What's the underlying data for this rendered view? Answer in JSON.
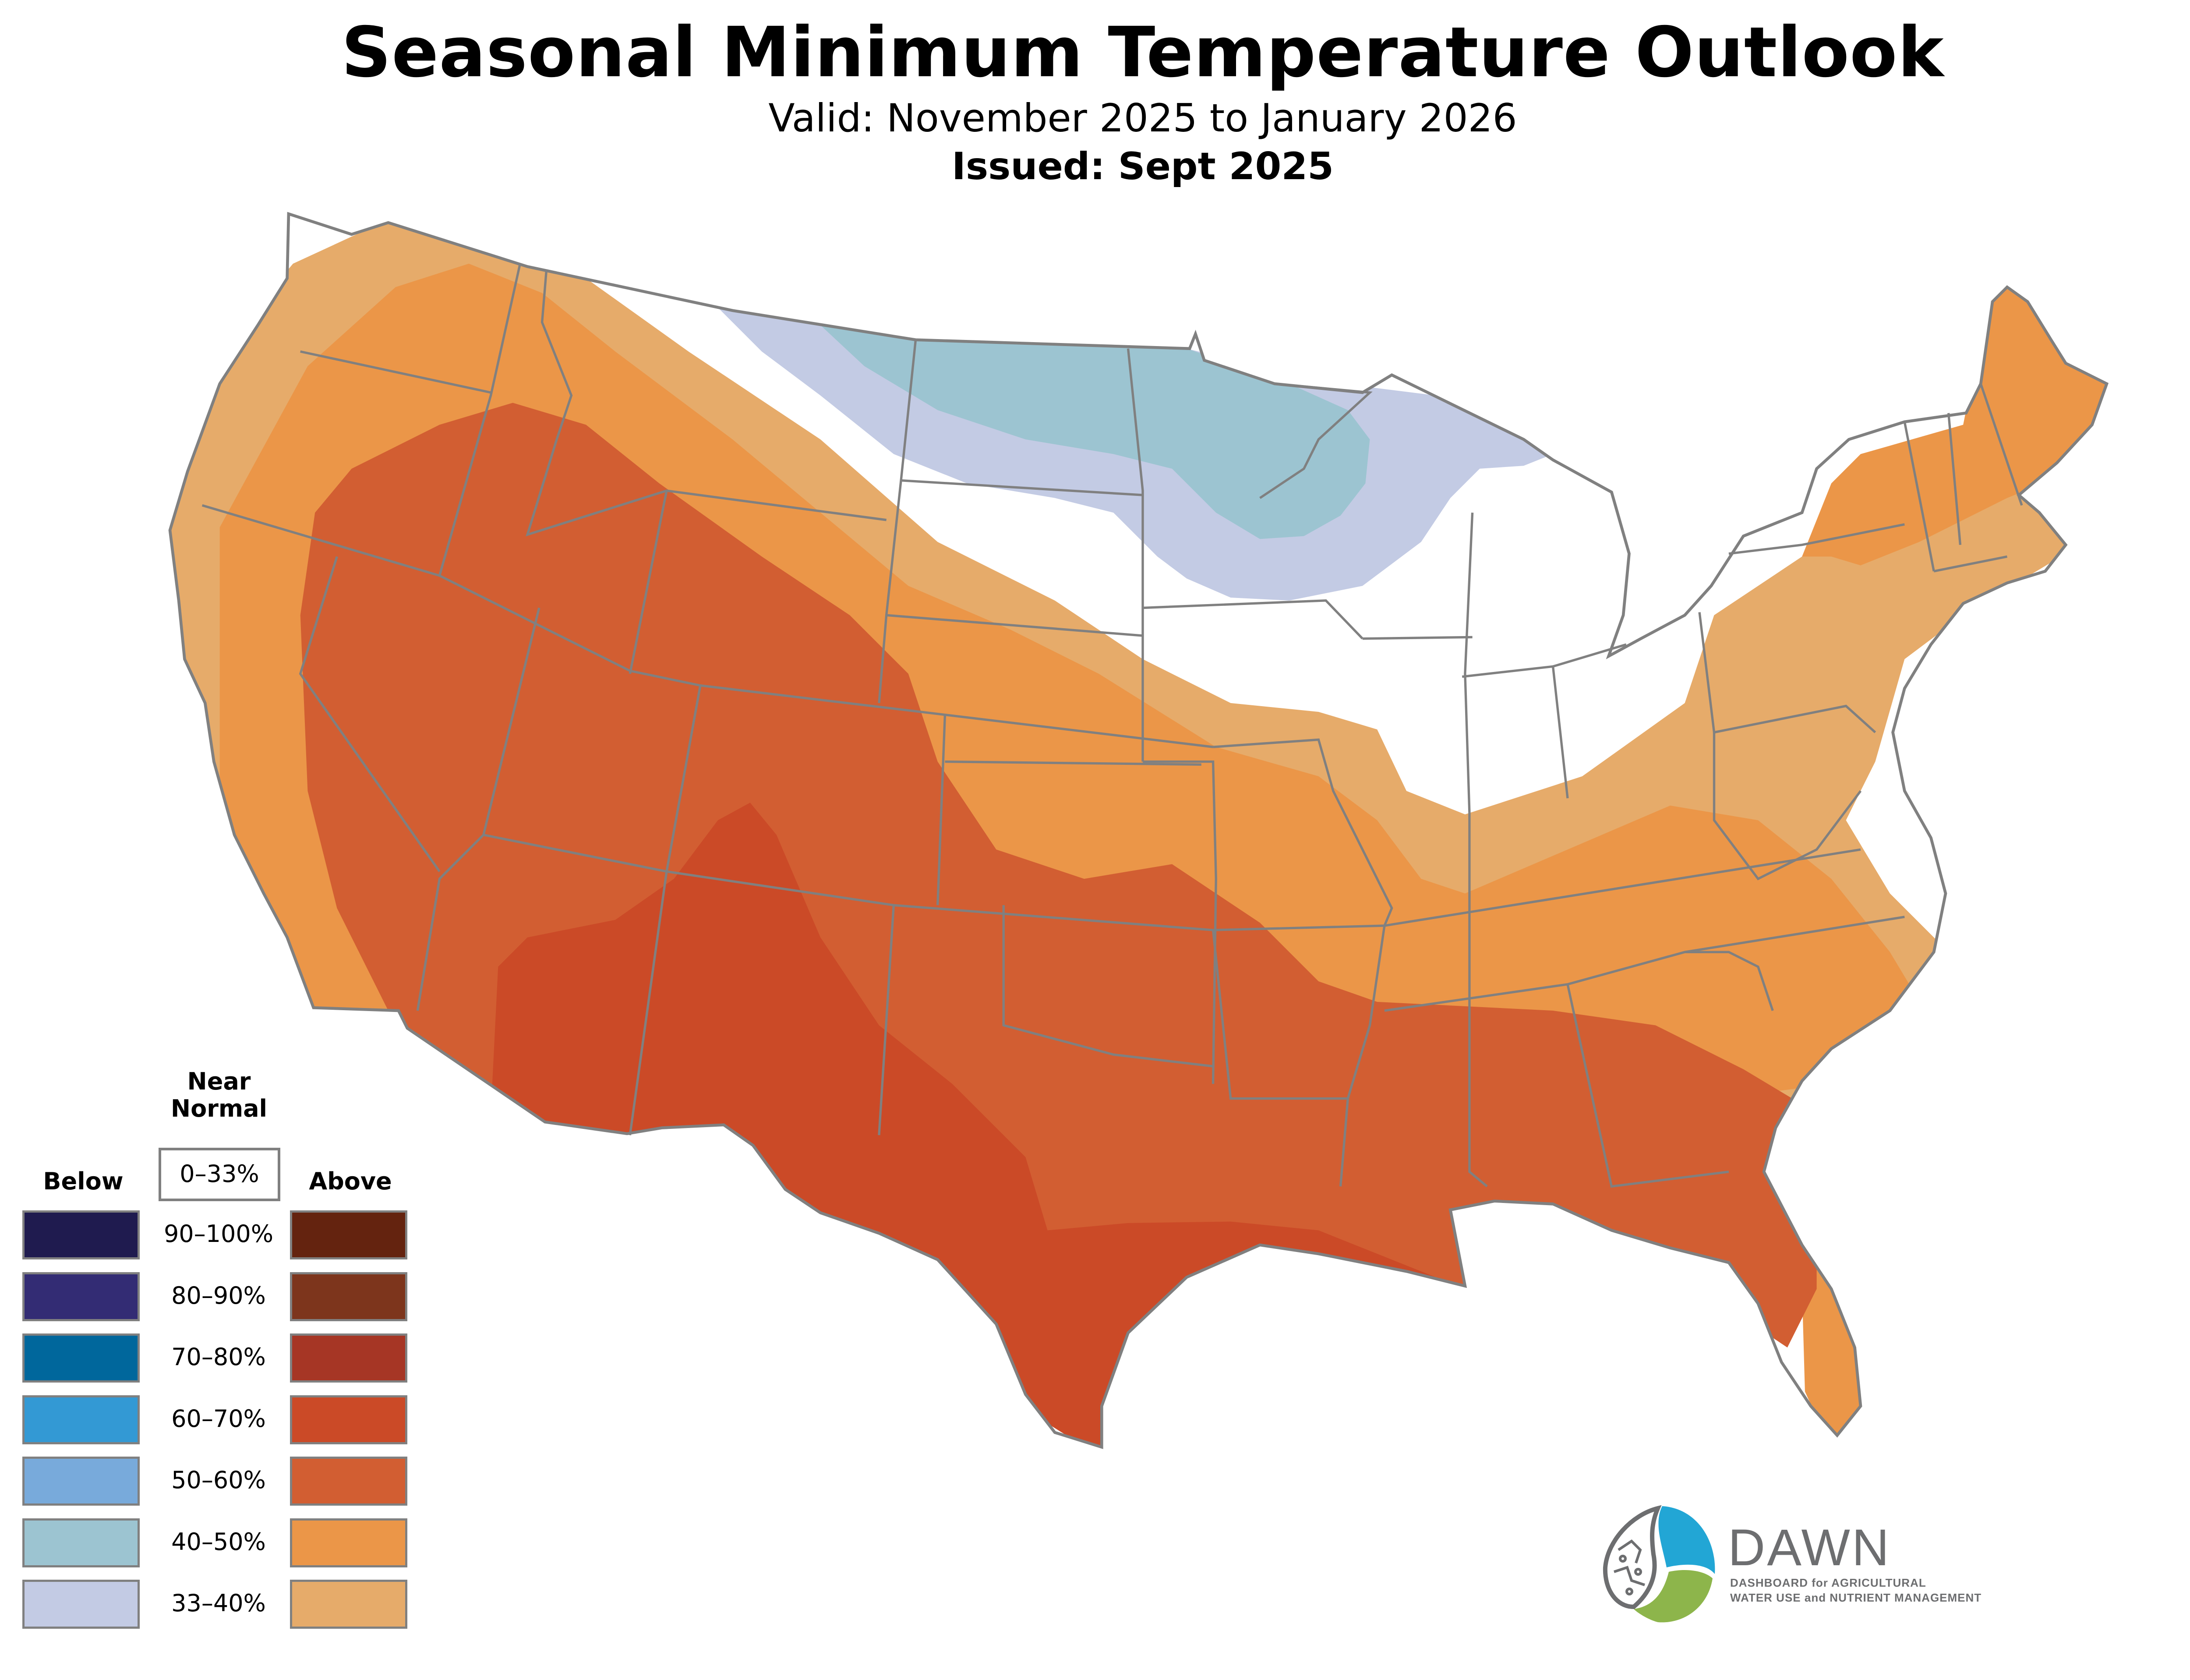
{
  "header": {
    "title": "Seasonal Minimum Temperature Outlook",
    "valid": "Valid: November 2025 to January 2026",
    "issued": "Issued: Sept 2025"
  },
  "legend": {
    "below_label": "Below",
    "above_label": "Above",
    "near_normal_label_line1": "Near",
    "near_normal_label_line2": "Normal",
    "near_normal_range": "0–33%",
    "rows": [
      {
        "range": "90–100%",
        "below_color": "#1f1b4f",
        "above_color": "#64230f"
      },
      {
        "range": "80–90%",
        "below_color": "#332c74",
        "above_color": "#7d351c"
      },
      {
        "range": "70–80%",
        "below_color": "#00679c",
        "above_color": "#a63625"
      },
      {
        "range": "60–70%",
        "below_color": "#3399d4",
        "above_color": "#cb4a27"
      },
      {
        "range": "50–60%",
        "below_color": "#78aadb",
        "above_color": "#d25e32"
      },
      {
        "range": "40–50%",
        "below_color": "#9cc4d1",
        "above_color": "#eb9648"
      },
      {
        "range": "33–40%",
        "below_color": "#c3cbe4",
        "above_color": "#e6ab6a"
      }
    ]
  },
  "map": {
    "categories_shown": [
      {
        "name": "Above 60–70%",
        "color": "#cb4a27"
      },
      {
        "name": "Above 50–60%",
        "color": "#d25e32"
      },
      {
        "name": "Above 40–50%",
        "color": "#eb9648"
      },
      {
        "name": "Above 33–40%",
        "color": "#e6ab6a"
      },
      {
        "name": "Near Normal 0–33%",
        "color": "#ffffff"
      },
      {
        "name": "Below 33–40%",
        "color": "#c3cbe4"
      },
      {
        "name": "Below 40–50%",
        "color": "#9cc4d1"
      }
    ],
    "border_color": "#808080"
  },
  "logo": {
    "name": "DAWN",
    "line1": "DASHBOARD for AGRICULTURAL",
    "line2": "WATER USE and NUTRIENT MANAGEMENT",
    "blue": "#22a6d5",
    "green": "#8db54b",
    "grey": "#6d6e70"
  }
}
